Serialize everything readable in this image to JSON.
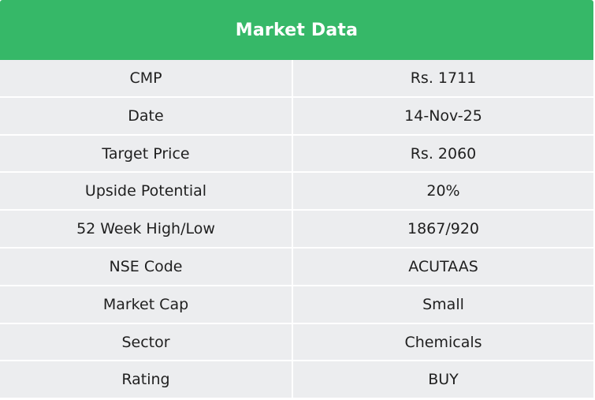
{
  "header": {
    "title": "Market Data",
    "color": "#36b868"
  },
  "rows": [
    {
      "label": "CMP",
      "value": "Rs. 1711"
    },
    {
      "label": "Date",
      "value": "14-Nov-25"
    },
    {
      "label": "Target Price",
      "value": "Rs. 2060"
    },
    {
      "label": "Upside Potential",
      "value": "20%"
    },
    {
      "label": "52 Week High/Low",
      "value": "1867/920"
    },
    {
      "label": "NSE Code",
      "value": "ACUTAAS"
    },
    {
      "label": "Market Cap",
      "value": "Small"
    },
    {
      "label": "Sector",
      "value": "Chemicals"
    },
    {
      "label": "Rating",
      "value": "BUY"
    }
  ]
}
